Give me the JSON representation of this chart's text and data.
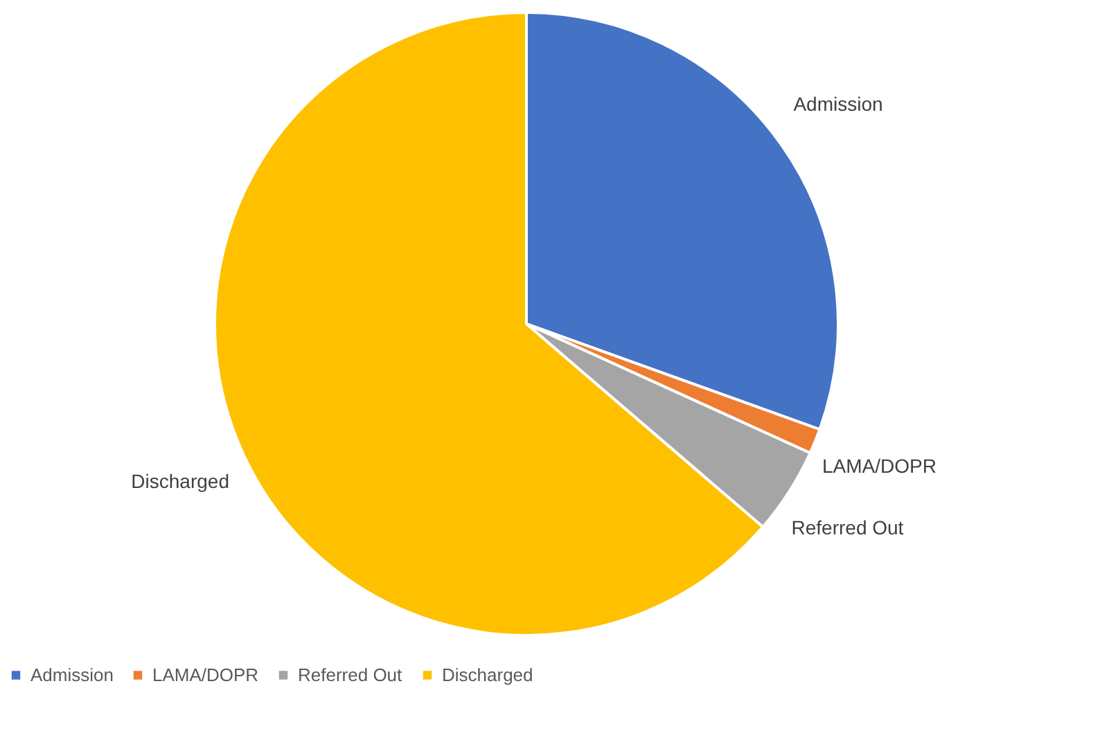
{
  "chart_data": {
    "type": "pie",
    "categories": [
      "Admission",
      "LAMA/DOPR",
      "Referred Out",
      "Discharged"
    ],
    "values": [
      30.5,
      1.3,
      4.5,
      63.7
    ],
    "colors": [
      "#4472c4",
      "#ed7d31",
      "#a5a5a5",
      "#ffc000"
    ],
    "legend": "bottom"
  }
}
